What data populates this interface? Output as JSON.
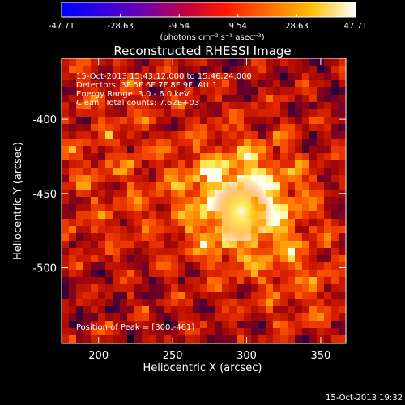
{
  "colorbar": {
    "tick_labels": [
      "-47.71",
      "-28.63",
      "-9.54",
      "9.54",
      "28.63",
      "47.71"
    ],
    "range": [
      -47.71,
      47.71
    ],
    "units_label": "(photons cm⁻² s⁻¹ asec⁻²)"
  },
  "title": "Reconstructed RHESSI Image",
  "annotations": {
    "time_range": "15-Oct-2013 15:43:12.000 to 15:46:24.000",
    "detectors": "Detectors: 3F 5F 6F 7F 8F 9F, Att 1",
    "energy_range": "Energy Range: 3.0 - 6.0 keV",
    "method": "Clean",
    "total_counts": "Total counts: 7.62E+03",
    "peak_position": "Position of Peak = [300,-461]"
  },
  "axes": {
    "xlabel": "Heliocentric X (arcsec)",
    "ylabel": "Heliocentric Y (arcsec)",
    "x_ticks": [
      "200",
      "250",
      "300",
      "350"
    ],
    "y_ticks": [
      "-400",
      "-450",
      "-500"
    ],
    "x_tick_values": [
      200,
      250,
      300,
      350
    ],
    "y_tick_values": [
      -400,
      -450,
      -500
    ],
    "xlim": [
      175,
      367
    ],
    "ylim": [
      -551,
      -359
    ]
  },
  "peak": {
    "x": 300,
    "y": -461
  },
  "footer_timestamp": "15-Oct-2013 19:32"
}
